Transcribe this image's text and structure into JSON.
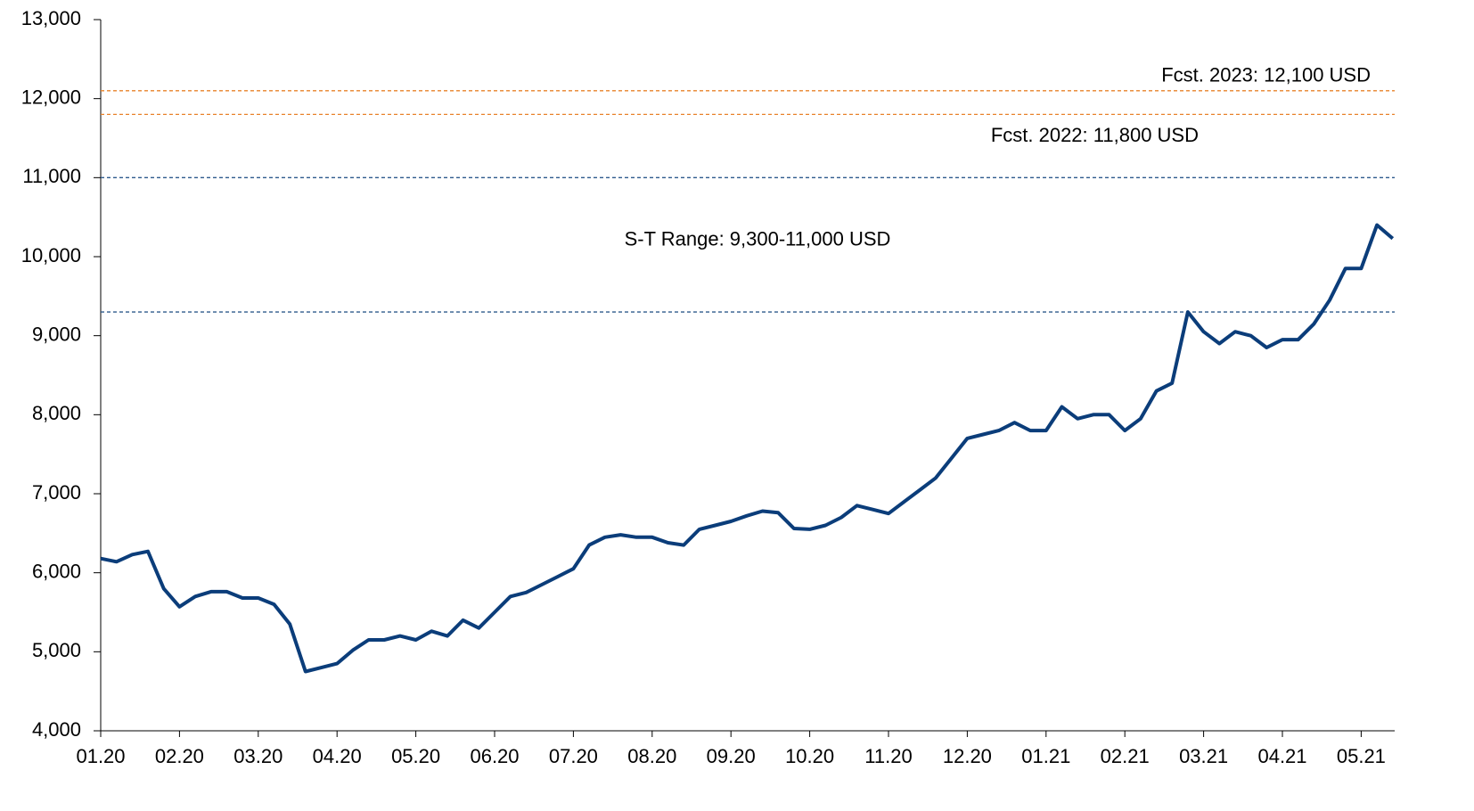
{
  "chart_data": {
    "type": "line",
    "categories": [
      "01.20",
      null,
      null,
      null,
      null,
      "02.20",
      null,
      null,
      null,
      null,
      "03.20",
      null,
      null,
      null,
      null,
      "04.20",
      null,
      null,
      null,
      null,
      "05.20",
      null,
      null,
      null,
      null,
      "06.20",
      null,
      null,
      null,
      null,
      "07.20",
      null,
      null,
      null,
      null,
      "08.20",
      null,
      null,
      null,
      null,
      "09.20",
      null,
      null,
      null,
      null,
      "10.20",
      null,
      null,
      null,
      null,
      "11.20",
      null,
      null,
      null,
      null,
      "12.20",
      null,
      null,
      null,
      null,
      "01.21",
      null,
      null,
      null,
      null,
      "02.21",
      null,
      null,
      null,
      null,
      "03.21",
      null,
      null,
      null,
      null,
      "04.21",
      null,
      null,
      null,
      null,
      "05.21",
      null,
      null
    ],
    "series": [
      {
        "color": "#0b3d7a",
        "values": [
          6180,
          6140,
          6230,
          6270,
          5800,
          5570,
          5700,
          5760,
          5760,
          5680,
          5680,
          5600,
          5350,
          4750,
          4800,
          4850,
          5020,
          5150,
          5150,
          5200,
          5150,
          5260,
          5200,
          5400,
          5300,
          5500,
          5700,
          5750,
          5850,
          5950,
          6050,
          6350,
          6450,
          6480,
          6450,
          6450,
          6380,
          6350,
          6550,
          6600,
          6650,
          6720,
          6780,
          6760,
          6560,
          6550,
          6600,
          6700,
          6850,
          6800,
          6750,
          6900,
          7050,
          7200,
          7450,
          7700,
          7750,
          7800,
          7900,
          7800,
          7800,
          8100,
          7950,
          8000,
          8000,
          7800,
          7950,
          8300,
          8400,
          9300,
          9050,
          8900,
          9050,
          9000,
          8850,
          8950,
          8950,
          9150,
          9450,
          9850,
          9850,
          10400,
          10230
        ]
      }
    ],
    "ylim": [
      4000,
      13000
    ],
    "yticks": [
      {
        "value": 4000,
        "label": "4,000"
      },
      {
        "value": 5000,
        "label": "5,000"
      },
      {
        "value": 6000,
        "label": "6,000"
      },
      {
        "value": 7000,
        "label": "7,000"
      },
      {
        "value": 8000,
        "label": "8,000"
      },
      {
        "value": 9000,
        "label": "9,000"
      },
      {
        "value": 10000,
        "label": "10,000"
      },
      {
        "value": 11000,
        "label": "11,000"
      },
      {
        "value": 12000,
        "label": "12,000"
      },
      {
        "value": 13000,
        "label": "13,000"
      }
    ],
    "forecasts": [
      {
        "value": 12100,
        "label": "Fcst. 2023: 12,100 USD",
        "color": "#e8822a"
      },
      {
        "value": 11800,
        "label": "Fcst. 2022: 11,800 USD",
        "color": "#e8822a"
      }
    ],
    "range": {
      "low": 9300,
      "high": 11000,
      "label": "S-T Range: 9,300-11,000 USD",
      "color": "#2e5a8c"
    }
  }
}
